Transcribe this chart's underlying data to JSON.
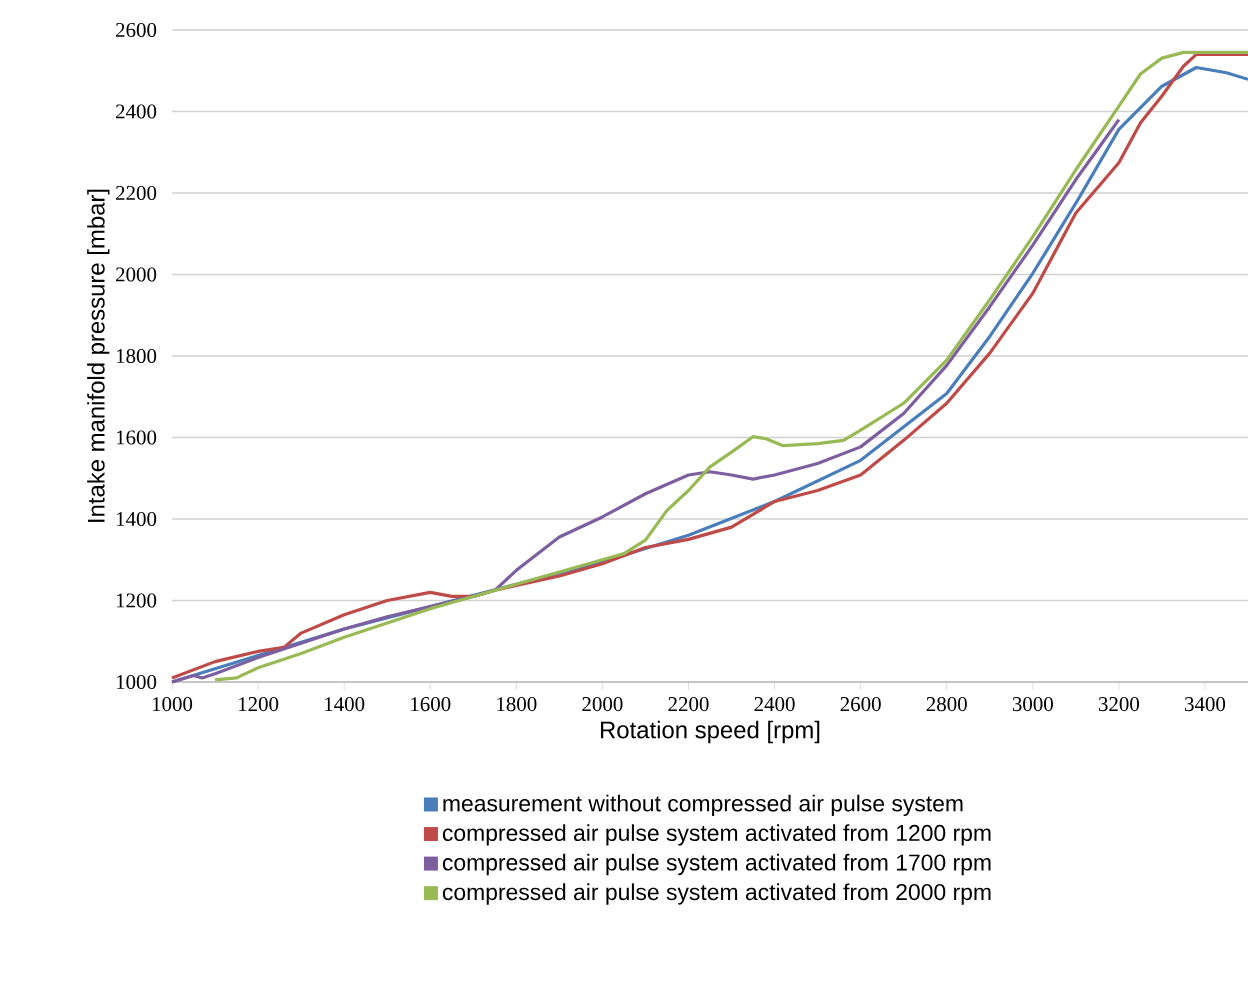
{
  "chart_data": {
    "type": "line",
    "xlabel": "Rotation speed [rpm]",
    "ylabel": "Intake manifold pressure [mbar]",
    "xlim": [
      1000,
      3500
    ],
    "xticks": [
      1000,
      1200,
      1400,
      1600,
      1800,
      2000,
      2200,
      2400,
      2600,
      2800,
      3000,
      3200,
      3400
    ],
    "ylim": [
      1000,
      2600
    ],
    "yticks": [
      1000,
      1200,
      1400,
      1600,
      1800,
      2000,
      2200,
      2400,
      2600
    ],
    "grid": "y",
    "legend": "bottom",
    "marker": "none",
    "line_style": "solid",
    "series": [
      {
        "name": "measurement without compressed air pulse system",
        "color": "#4a7ebb",
        "x": [
          1000,
          1200,
          1400,
          1600,
          1800,
          2000,
          2200,
          2400,
          2600,
          2800,
          2900,
          3000,
          3100,
          3200,
          3300,
          3380,
          3450,
          3500
        ],
        "values": [
          1000,
          1065,
          1130,
          1185,
          1240,
          1295,
          1360,
          1443,
          1544,
          1708,
          1848,
          2003,
          2175,
          2356,
          2462,
          2508,
          2495,
          2479
        ]
      },
      {
        "name": "compressed air pulse system activated from 1200 rpm",
        "color": "#be4b48",
        "x": [
          1000,
          1100,
          1200,
          1260,
          1300,
          1400,
          1500,
          1600,
          1650,
          1700,
          1750,
          1800,
          1900,
          2000,
          2100,
          2200,
          2300,
          2400,
          2500,
          2600,
          2700,
          2800,
          2900,
          3000,
          3100,
          3200,
          3250,
          3300,
          3350,
          3380,
          3500
        ],
        "values": [
          1010,
          1050,
          1075,
          1085,
          1120,
          1165,
          1200,
          1220,
          1210,
          1210,
          1225,
          1237,
          1260,
          1290,
          1330,
          1350,
          1380,
          1443,
          1470,
          1508,
          1593,
          1684,
          1807,
          1954,
          2151,
          2274,
          2372,
          2438,
          2511,
          2540,
          2540
        ]
      },
      {
        "name": "compressed air pulse system activated from 1700 rpm",
        "color": "#7d5fa0",
        "x": [
          1000,
          1050,
          1070,
          1100,
          1200,
          1300,
          1400,
          1500,
          1600,
          1700,
          1750,
          1800,
          1900,
          2000,
          2100,
          2200,
          2250,
          2300,
          2350,
          2400,
          2500,
          2600,
          2700,
          2800,
          2900,
          3000,
          3100,
          3150,
          3200
        ],
        "values": [
          1000,
          1016,
          1010,
          1020,
          1060,
          1095,
          1130,
          1160,
          1185,
          1210,
          1225,
          1274,
          1356,
          1405,
          1462,
          1508,
          1516,
          1508,
          1498,
          1508,
          1536,
          1577,
          1659,
          1777,
          1921,
          2072,
          2233,
          2306,
          2380
        ]
      },
      {
        "name": "compressed air pulse system activated from 2000 rpm",
        "color": "#98b954",
        "x": [
          1100,
          1150,
          1200,
          1300,
          1400,
          1500,
          1600,
          1700,
          1800,
          1900,
          2000,
          2050,
          2100,
          2150,
          2200,
          2250,
          2300,
          2350,
          2380,
          2420,
          2500,
          2560,
          2600,
          2700,
          2800,
          2900,
          3000,
          3100,
          3200,
          3250,
          3300,
          3350,
          3500
        ],
        "values": [
          1005,
          1010,
          1035,
          1070,
          1110,
          1145,
          1180,
          1210,
          1240,
          1270,
          1300,
          1315,
          1348,
          1421,
          1470,
          1528,
          1564,
          1602,
          1597,
          1580,
          1585,
          1593,
          1618,
          1684,
          1790,
          1938,
          2093,
          2257,
          2413,
          2492,
          2531,
          2545,
          2545
        ]
      }
    ]
  }
}
